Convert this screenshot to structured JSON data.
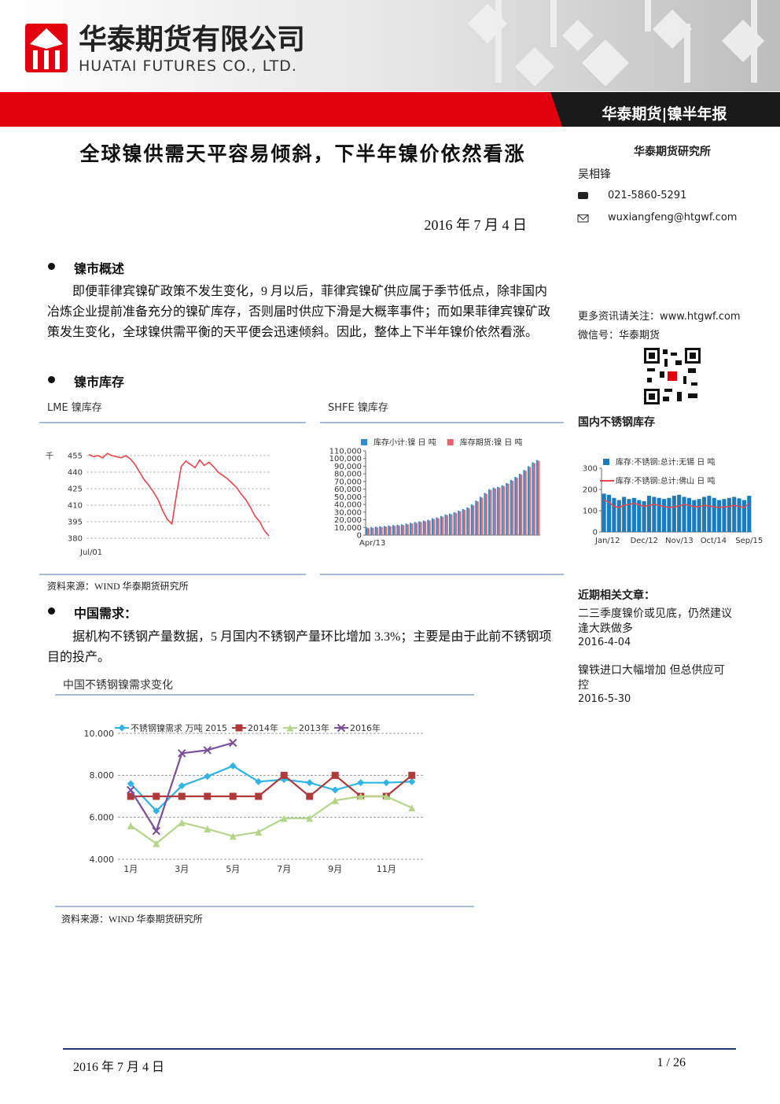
{
  "header": {
    "company": "华泰期货有限公司",
    "company_en": "HUATAI FUTURES CO., LTD.",
    "report": "华泰期货|镍半年报"
  },
  "title": "全球镍供需天平容易倾斜，下半年镍价依然看涨",
  "date": "2016 年 7 月 4 日",
  "sidebar": {
    "institute": "华泰期货研究所",
    "analyst": "吴相锋",
    "phone": "021-5860-5291",
    "email": "wuxiangfeng@htgwf.com",
    "follow": "更多资讯请关注：www.htgwf.com",
    "wechat": "微信号：华泰期货",
    "related_title": "近期相关文章：",
    "articles": [
      {
        "title": "二三季度镍价或见底，仍然建议逢大跌做多",
        "date": "2016-4-04"
      },
      {
        "title": "镍铁进口大幅增加 但总供应可控",
        "date": "2016-5-30"
      }
    ]
  },
  "sections": [
    {
      "heading": "镍市概述",
      "text": "即便菲律宾镍矿政策不发生变化，9 月以后，菲律宾镍矿供应属于季节低点，除非国内冶炼企业提前准备充分的镍矿库存，否则届时供应下滑是大概率事件；而如果菲律宾镍矿政策发生变化，全球镍供需平衡的天平便会迅速倾斜。因此，整体上下半年镍价依然看涨。"
    },
    {
      "heading": "镍市库存"
    },
    {
      "heading": "中国需求：",
      "text": "据机构不锈钢产量数据，5 月国内不锈钢产量环比增加 3.3%；主要是由于此前不锈钢项目的投产。"
    }
  ],
  "sources": [
    "资料来源：WIND 华泰期货研究所",
    "资料来源：WIND 华泰期货研究所"
  ],
  "chart_data": [
    {
      "type": "line",
      "title": "LME 镍库存",
      "y_label": "千",
      "grid": true,
      "categories": [
        "Jul/01",
        null,
        null,
        null,
        null,
        null,
        null,
        null,
        null,
        null,
        null,
        null,
        null,
        null,
        null,
        null,
        null,
        null,
        null,
        null,
        null,
        null,
        null,
        null,
        null,
        null,
        null,
        null,
        null,
        null,
        null,
        null,
        null,
        null,
        null,
        null,
        null,
        null,
        null,
        null
      ],
      "series": [
        {
          "color": "#e8464a",
          "values": [
            456,
            454,
            455,
            453,
            457,
            455,
            454,
            453,
            455,
            452,
            447,
            440,
            433,
            428,
            422,
            415,
            405,
            397,
            393,
            420,
            445,
            450,
            447,
            444,
            451,
            446,
            449,
            445,
            440,
            437,
            434,
            430,
            426,
            420,
            415,
            408,
            400,
            395,
            387,
            382
          ]
        }
      ],
      "ylim": [
        375,
        460
      ],
      "yticks": [
        380,
        395,
        410,
        425,
        440,
        455
      ]
    },
    {
      "type": "bar",
      "title": "SHFE 镍库存",
      "grid": false,
      "legend": "top",
      "categories": [
        "Apr/13",
        null,
        null,
        null,
        null,
        null,
        null,
        null,
        null,
        null,
        null,
        null,
        null,
        null,
        null,
        null,
        null,
        null,
        null,
        null,
        null,
        null,
        null,
        null,
        null,
        null,
        null,
        null,
        null,
        null,
        null,
        null,
        null,
        null,
        null,
        null,
        null,
        null,
        null,
        null
      ],
      "series": [
        {
          "name": "库存小计:镍 日 吨",
          "color": "#2f8fd0",
          "values": [
            10000,
            10500,
            11000,
            11500,
            12000,
            12500,
            13000,
            13500,
            14000,
            15000,
            16000,
            17000,
            18000,
            19000,
            20000,
            22000,
            23000,
            25000,
            27000,
            28000,
            30000,
            32000,
            34000,
            36000,
            40000,
            45000,
            50000,
            55000,
            60000,
            62000,
            63000,
            65000,
            68000,
            72000,
            76000,
            80000,
            85000,
            90000,
            95000,
            98000
          ]
        },
        {
          "name": "库存期货:镍 日 吨",
          "color": "#e8646a",
          "values": [
            9000,
            9500,
            10000,
            10500,
            11000,
            11500,
            12000,
            12500,
            13000,
            14000,
            15000,
            16000,
            17000,
            18000,
            19000,
            21000,
            22000,
            24000,
            26000,
            27000,
            29000,
            31000,
            33000,
            35000,
            39000,
            44000,
            49000,
            54000,
            59000,
            61000,
            62000,
            64000,
            67000,
            71000,
            75000,
            79000,
            84000,
            89000,
            94000,
            97000
          ]
        }
      ],
      "ylim": [
        0,
        110000
      ],
      "yticks": [
        0,
        {
          "value": 10000,
          "label": "10,000"
        },
        {
          "value": 20000,
          "label": "20,000"
        },
        {
          "value": 30000,
          "label": "30,000"
        },
        {
          "value": 40000,
          "label": "40,000"
        },
        {
          "value": 50000,
          "label": "50,000"
        },
        {
          "value": 60000,
          "label": "60,000"
        },
        {
          "value": 70000,
          "label": "70,000"
        },
        {
          "value": 80000,
          "label": "80,000"
        },
        {
          "value": 90000,
          "label": "90,000"
        },
        {
          "value": 100000,
          "label": "100,000"
        },
        {
          "value": 110000,
          "label": "110,000"
        }
      ]
    },
    {
      "type": "combo",
      "title": "国内不锈钢库存",
      "grid": false,
      "legend": "top",
      "categories": [
        "Jan/12",
        null,
        null,
        null,
        null,
        null,
        null,
        "Dec/12",
        null,
        null,
        null,
        null,
        null,
        null,
        "Nov/13",
        null,
        null,
        null,
        null,
        null,
        null,
        "Oct/14",
        null,
        null,
        null,
        null,
        null,
        null,
        "Sep/15",
        null
      ],
      "series": [
        {
          "name": "库存:不锈钢:总计:无锡 日 吨",
          "type": "bar",
          "color": "#1a7bbf",
          "values": [
            180,
            175,
            160,
            150,
            165,
            155,
            160,
            150,
            145,
            170,
            165,
            160,
            155,
            160,
            170,
            175,
            165,
            160,
            150,
            155,
            165,
            170,
            160,
            150,
            155,
            160,
            165,
            158,
            150,
            170
          ]
        },
        {
          "name": "库存:不锈钢:总计:佛山 日 吨",
          "type": "line",
          "color": "#e8464a",
          "values": [
            150,
            140,
            120,
            115,
            125,
            130,
            135,
            128,
            120,
            125,
            130,
            125,
            120,
            115,
            118,
            122,
            130,
            125,
            118,
            120,
            125,
            122,
            118,
            115,
            118,
            120,
            125,
            120,
            115,
            135
          ]
        }
      ],
      "ylim": [
        0,
        300
      ],
      "yticks": [
        0,
        100,
        200,
        300
      ]
    },
    {
      "type": "line",
      "title": "中国不锈钢镍需求变化",
      "grid": true,
      "legend": "top",
      "categories": [
        "1月",
        null,
        "3月",
        null,
        "5月",
        null,
        "7月",
        null,
        "9月",
        null,
        "11月",
        null
      ],
      "series": [
        {
          "name": "不锈钢镍需求 万吨 2015",
          "color": "#2eb4e6",
          "marker": "diamond",
          "values": [
            7.6,
            6.3,
            7.5,
            7.95,
            8.45,
            7.7,
            7.8,
            7.65,
            7.3,
            7.65,
            7.65,
            7.7
          ]
        },
        {
          "name": "2014年",
          "color": "#b03a3a",
          "marker": "square",
          "values": [
            7.0,
            7.0,
            7.0,
            7.0,
            7.0,
            7.0,
            8.0,
            7.0,
            8.0,
            7.0,
            7.0,
            8.0
          ]
        },
        {
          "name": "2013年",
          "color": "#b5d68a",
          "marker": "triangle",
          "values": [
            5.6,
            4.75,
            5.75,
            5.45,
            5.1,
            5.3,
            5.95,
            5.95,
            6.8,
            7.0,
            7.0,
            6.45
          ]
        },
        {
          "name": "2016年",
          "color": "#7a4f9a",
          "marker": "x",
          "values": [
            7.3,
            5.35,
            9.05,
            9.2,
            9.55,
            null,
            null,
            null,
            null,
            null,
            null,
            null
          ]
        }
      ],
      "ylim": [
        4,
        10
      ],
      "yticks": [
        {
          "value": 4,
          "label": "4.000"
        },
        {
          "value": 6,
          "label": "6.000"
        },
        {
          "value": 8,
          "label": "8.000"
        },
        {
          "value": 10,
          "label": "10.000"
        }
      ]
    }
  ],
  "footer": {
    "date": "2016 年 7 月 4 日",
    "page": "1 / 26"
  }
}
